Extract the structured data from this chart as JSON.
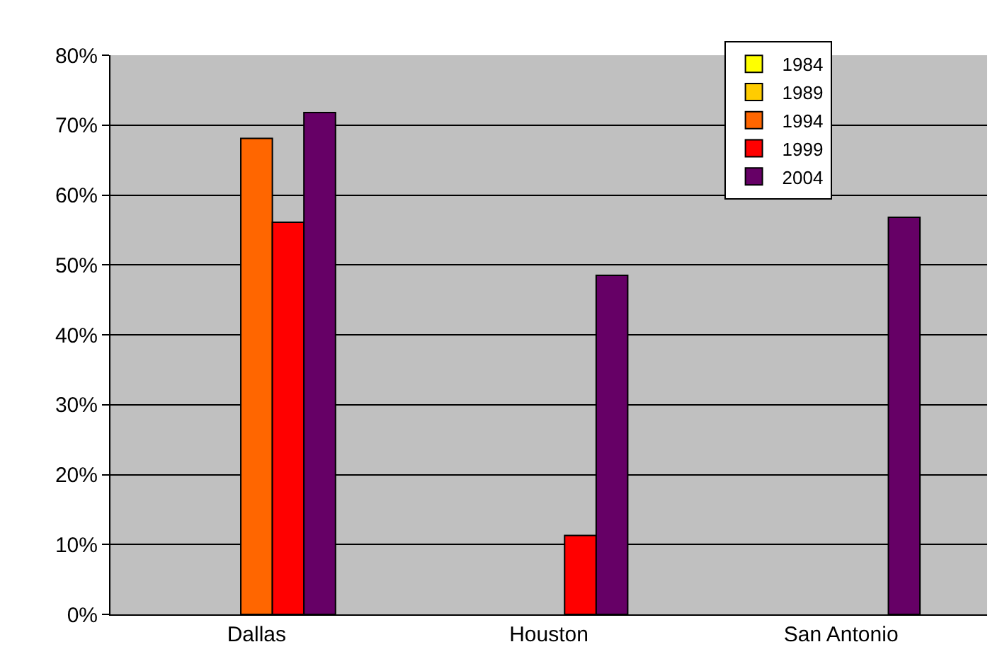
{
  "chart_data": {
    "type": "bar",
    "categories": [
      "Dallas",
      "Houston",
      "San Antonio"
    ],
    "series": [
      {
        "name": "1984",
        "color": "#ffff00",
        "values": [
          null,
          null,
          null
        ]
      },
      {
        "name": "1989",
        "color": "#ffcc00",
        "values": [
          null,
          null,
          null
        ]
      },
      {
        "name": "1994",
        "color": "#ff6600",
        "values": [
          68.1,
          null,
          null
        ]
      },
      {
        "name": "1999",
        "color": "#ff0000",
        "values": [
          56.1,
          11.3,
          null
        ]
      },
      {
        "name": "2004",
        "color": "#660066",
        "values": [
          71.8,
          48.5,
          56.8
        ]
      }
    ],
    "ylim": [
      0,
      80
    ],
    "yticks": [
      {
        "value": 0,
        "label": "0%"
      },
      {
        "value": 10,
        "label": "10%"
      },
      {
        "value": 20,
        "label": "20%"
      },
      {
        "value": 30,
        "label": "30%"
      },
      {
        "value": 40,
        "label": "40%"
      },
      {
        "value": 50,
        "label": "50%"
      },
      {
        "value": 60,
        "label": "60%"
      },
      {
        "value": 70,
        "label": "70%"
      },
      {
        "value": 80,
        "label": "80%"
      }
    ],
    "grid": "y",
    "legend": "top right"
  }
}
